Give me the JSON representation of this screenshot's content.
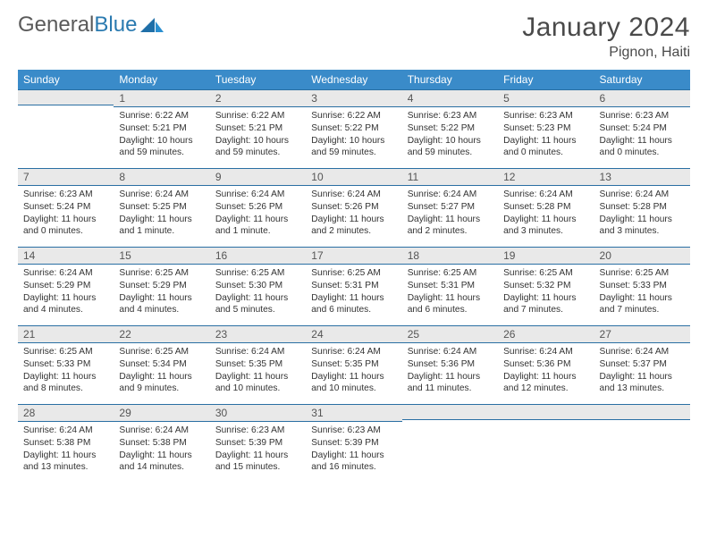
{
  "brand": {
    "part1": "General",
    "part2": "Blue"
  },
  "title": "January 2024",
  "location": "Pignon, Haiti",
  "colors": {
    "header_bg": "#3a8bc9",
    "header_text": "#ffffff",
    "daynum_bg": "#e9e9e9",
    "daynum_border": "#2a6fa3",
    "logo_gray": "#5a5a5a",
    "logo_blue": "#2a7ab0"
  },
  "weekdays": [
    "Sunday",
    "Monday",
    "Tuesday",
    "Wednesday",
    "Thursday",
    "Friday",
    "Saturday"
  ],
  "weeks": [
    [
      null,
      {
        "n": "1",
        "sr": "Sunrise: 6:22 AM",
        "ss": "Sunset: 5:21 PM",
        "dl": "Daylight: 10 hours and 59 minutes."
      },
      {
        "n": "2",
        "sr": "Sunrise: 6:22 AM",
        "ss": "Sunset: 5:21 PM",
        "dl": "Daylight: 10 hours and 59 minutes."
      },
      {
        "n": "3",
        "sr": "Sunrise: 6:22 AM",
        "ss": "Sunset: 5:22 PM",
        "dl": "Daylight: 10 hours and 59 minutes."
      },
      {
        "n": "4",
        "sr": "Sunrise: 6:23 AM",
        "ss": "Sunset: 5:22 PM",
        "dl": "Daylight: 10 hours and 59 minutes."
      },
      {
        "n": "5",
        "sr": "Sunrise: 6:23 AM",
        "ss": "Sunset: 5:23 PM",
        "dl": "Daylight: 11 hours and 0 minutes."
      },
      {
        "n": "6",
        "sr": "Sunrise: 6:23 AM",
        "ss": "Sunset: 5:24 PM",
        "dl": "Daylight: 11 hours and 0 minutes."
      }
    ],
    [
      {
        "n": "7",
        "sr": "Sunrise: 6:23 AM",
        "ss": "Sunset: 5:24 PM",
        "dl": "Daylight: 11 hours and 0 minutes."
      },
      {
        "n": "8",
        "sr": "Sunrise: 6:24 AM",
        "ss": "Sunset: 5:25 PM",
        "dl": "Daylight: 11 hours and 1 minute."
      },
      {
        "n": "9",
        "sr": "Sunrise: 6:24 AM",
        "ss": "Sunset: 5:26 PM",
        "dl": "Daylight: 11 hours and 1 minute."
      },
      {
        "n": "10",
        "sr": "Sunrise: 6:24 AM",
        "ss": "Sunset: 5:26 PM",
        "dl": "Daylight: 11 hours and 2 minutes."
      },
      {
        "n": "11",
        "sr": "Sunrise: 6:24 AM",
        "ss": "Sunset: 5:27 PM",
        "dl": "Daylight: 11 hours and 2 minutes."
      },
      {
        "n": "12",
        "sr": "Sunrise: 6:24 AM",
        "ss": "Sunset: 5:28 PM",
        "dl": "Daylight: 11 hours and 3 minutes."
      },
      {
        "n": "13",
        "sr": "Sunrise: 6:24 AM",
        "ss": "Sunset: 5:28 PM",
        "dl": "Daylight: 11 hours and 3 minutes."
      }
    ],
    [
      {
        "n": "14",
        "sr": "Sunrise: 6:24 AM",
        "ss": "Sunset: 5:29 PM",
        "dl": "Daylight: 11 hours and 4 minutes."
      },
      {
        "n": "15",
        "sr": "Sunrise: 6:25 AM",
        "ss": "Sunset: 5:29 PM",
        "dl": "Daylight: 11 hours and 4 minutes."
      },
      {
        "n": "16",
        "sr": "Sunrise: 6:25 AM",
        "ss": "Sunset: 5:30 PM",
        "dl": "Daylight: 11 hours and 5 minutes."
      },
      {
        "n": "17",
        "sr": "Sunrise: 6:25 AM",
        "ss": "Sunset: 5:31 PM",
        "dl": "Daylight: 11 hours and 6 minutes."
      },
      {
        "n": "18",
        "sr": "Sunrise: 6:25 AM",
        "ss": "Sunset: 5:31 PM",
        "dl": "Daylight: 11 hours and 6 minutes."
      },
      {
        "n": "19",
        "sr": "Sunrise: 6:25 AM",
        "ss": "Sunset: 5:32 PM",
        "dl": "Daylight: 11 hours and 7 minutes."
      },
      {
        "n": "20",
        "sr": "Sunrise: 6:25 AM",
        "ss": "Sunset: 5:33 PM",
        "dl": "Daylight: 11 hours and 7 minutes."
      }
    ],
    [
      {
        "n": "21",
        "sr": "Sunrise: 6:25 AM",
        "ss": "Sunset: 5:33 PM",
        "dl": "Daylight: 11 hours and 8 minutes."
      },
      {
        "n": "22",
        "sr": "Sunrise: 6:25 AM",
        "ss": "Sunset: 5:34 PM",
        "dl": "Daylight: 11 hours and 9 minutes."
      },
      {
        "n": "23",
        "sr": "Sunrise: 6:24 AM",
        "ss": "Sunset: 5:35 PM",
        "dl": "Daylight: 11 hours and 10 minutes."
      },
      {
        "n": "24",
        "sr": "Sunrise: 6:24 AM",
        "ss": "Sunset: 5:35 PM",
        "dl": "Daylight: 11 hours and 10 minutes."
      },
      {
        "n": "25",
        "sr": "Sunrise: 6:24 AM",
        "ss": "Sunset: 5:36 PM",
        "dl": "Daylight: 11 hours and 11 minutes."
      },
      {
        "n": "26",
        "sr": "Sunrise: 6:24 AM",
        "ss": "Sunset: 5:36 PM",
        "dl": "Daylight: 11 hours and 12 minutes."
      },
      {
        "n": "27",
        "sr": "Sunrise: 6:24 AM",
        "ss": "Sunset: 5:37 PM",
        "dl": "Daylight: 11 hours and 13 minutes."
      }
    ],
    [
      {
        "n": "28",
        "sr": "Sunrise: 6:24 AM",
        "ss": "Sunset: 5:38 PM",
        "dl": "Daylight: 11 hours and 13 minutes."
      },
      {
        "n": "29",
        "sr": "Sunrise: 6:24 AM",
        "ss": "Sunset: 5:38 PM",
        "dl": "Daylight: 11 hours and 14 minutes."
      },
      {
        "n": "30",
        "sr": "Sunrise: 6:23 AM",
        "ss": "Sunset: 5:39 PM",
        "dl": "Daylight: 11 hours and 15 minutes."
      },
      {
        "n": "31",
        "sr": "Sunrise: 6:23 AM",
        "ss": "Sunset: 5:39 PM",
        "dl": "Daylight: 11 hours and 16 minutes."
      },
      null,
      null,
      null
    ]
  ]
}
